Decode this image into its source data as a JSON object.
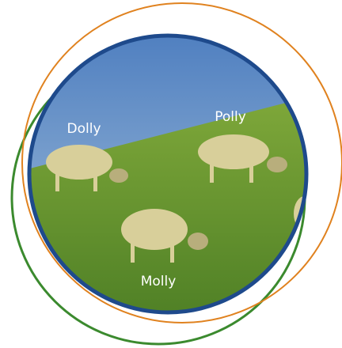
{
  "labels": [
    "Dolly",
    "Polly",
    "Molly"
  ]
}
